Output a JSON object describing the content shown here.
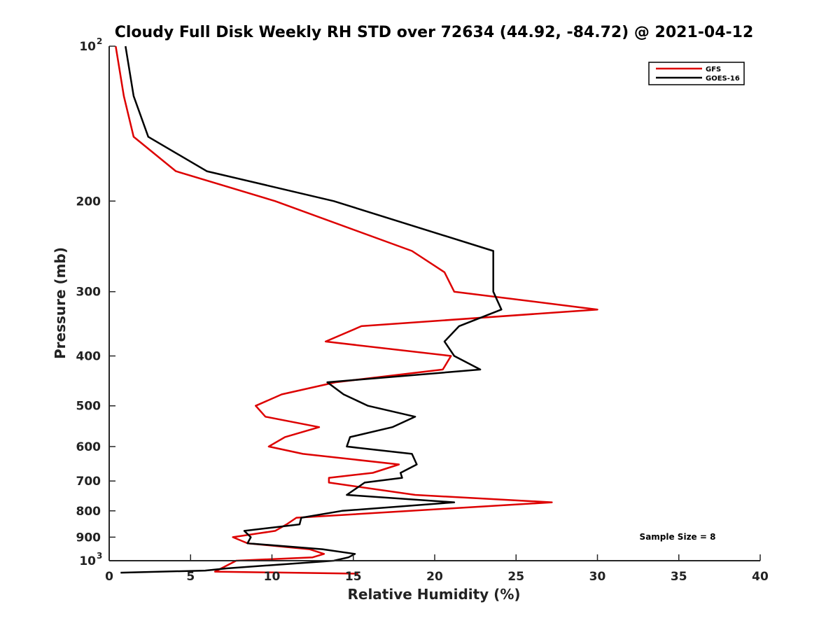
{
  "chart_data": {
    "type": "line",
    "title": "Cloudy Full Disk Weekly RH STD over 72634 (44.92, -84.72) @ 2021-04-12",
    "xlabel": "Relative Humidity (%)",
    "ylabel": "Pressure (mb)",
    "xlim": [
      0,
      40
    ],
    "ylim": [
      100,
      1000
    ],
    "y_scale": "log",
    "y_reversed": true,
    "x_ticks": [
      "0",
      "5",
      "10",
      "15",
      "20",
      "25",
      "30",
      "35",
      "40"
    ],
    "y_ticks": [
      {
        "value": 100,
        "base": "10",
        "exp": "2"
      },
      {
        "value": 200,
        "label": "200"
      },
      {
        "value": 300,
        "label": "300"
      },
      {
        "value": 400,
        "label": "400"
      },
      {
        "value": 500,
        "label": "500"
      },
      {
        "value": 600,
        "label": "600"
      },
      {
        "value": 700,
        "label": "700"
      },
      {
        "value": 800,
        "label": "800"
      },
      {
        "value": 900,
        "label": "900"
      },
      {
        "value": 1000,
        "base": "10",
        "exp": "3"
      }
    ],
    "legend_position": "top-right",
    "grid": false,
    "annotation": "Sample Size = 8",
    "series": [
      {
        "name": "GFS",
        "color": "#dd0000",
        "points": [
          [
            0.4,
            100
          ],
          [
            0.9,
            125
          ],
          [
            1.5,
            150
          ],
          [
            4.1,
            175
          ],
          [
            10.2,
            200
          ],
          [
            18.6,
            250
          ],
          [
            20.6,
            275
          ],
          [
            21.2,
            300
          ],
          [
            30.0,
            325
          ],
          [
            15.5,
            350
          ],
          [
            13.3,
            375
          ],
          [
            21.0,
            400
          ],
          [
            20.5,
            425
          ],
          [
            13.9,
            450
          ],
          [
            10.6,
            475
          ],
          [
            9.0,
            500
          ],
          [
            9.6,
            525
          ],
          [
            12.9,
            550
          ],
          [
            10.8,
            575
          ],
          [
            9.8,
            600
          ],
          [
            11.9,
            620
          ],
          [
            17.8,
            650
          ],
          [
            16.2,
            675
          ],
          [
            13.5,
            690
          ],
          [
            13.5,
            705
          ],
          [
            18.8,
            745
          ],
          [
            27.2,
            770
          ],
          [
            11.5,
            825
          ],
          [
            10.9,
            850
          ],
          [
            10.2,
            875
          ],
          [
            7.6,
            900
          ],
          [
            8.5,
            925
          ],
          [
            12.3,
            950
          ],
          [
            13.2,
            970
          ],
          [
            12.5,
            985
          ],
          [
            7.8,
            1000
          ],
          [
            6.5,
            1050
          ],
          [
            15.3,
            1060
          ]
        ]
      },
      {
        "name": "GOES-16",
        "color": "#000000",
        "points": [
          [
            1.0,
            100
          ],
          [
            1.5,
            125
          ],
          [
            2.4,
            150
          ],
          [
            6.0,
            175
          ],
          [
            13.8,
            200
          ],
          [
            23.6,
            250
          ],
          [
            23.6,
            275
          ],
          [
            23.6,
            300
          ],
          [
            24.1,
            325
          ],
          [
            21.5,
            350
          ],
          [
            20.6,
            375
          ],
          [
            21.2,
            400
          ],
          [
            22.8,
            425
          ],
          [
            13.4,
            450
          ],
          [
            14.4,
            475
          ],
          [
            15.9,
            500
          ],
          [
            18.8,
            525
          ],
          [
            17.4,
            550
          ],
          [
            14.8,
            575
          ],
          [
            14.6,
            600
          ],
          [
            18.6,
            620
          ],
          [
            18.9,
            650
          ],
          [
            17.9,
            675
          ],
          [
            18.0,
            690
          ],
          [
            15.7,
            705
          ],
          [
            14.6,
            745
          ],
          [
            21.2,
            770
          ],
          [
            14.3,
            800
          ],
          [
            11.8,
            825
          ],
          [
            11.7,
            850
          ],
          [
            8.3,
            875
          ],
          [
            8.7,
            900
          ],
          [
            8.5,
            925
          ],
          [
            13.1,
            950
          ],
          [
            15.1,
            970
          ],
          [
            14.7,
            985
          ],
          [
            13.8,
            1000
          ],
          [
            7.2,
            1035
          ],
          [
            5.9,
            1045
          ],
          [
            0.7,
            1055
          ]
        ]
      }
    ]
  }
}
